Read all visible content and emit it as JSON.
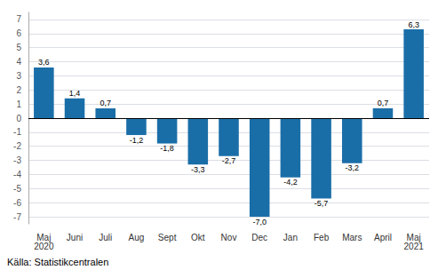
{
  "chart_data": {
    "type": "bar",
    "categories": [
      "Maj\n2020",
      "Juni",
      "Juli",
      "Aug",
      "Sept",
      "Okt",
      "Nov",
      "Dec",
      "Jan",
      "Feb",
      "Mars",
      "April",
      "Maj\n2021"
    ],
    "values": [
      3.6,
      1.4,
      0.7,
      -1.2,
      -1.8,
      -3.3,
      -2.7,
      -7.0,
      -4.2,
      -5.7,
      -3.2,
      0.7,
      6.3
    ],
    "value_labels": [
      "3,6",
      "1,4",
      "0,7",
      "-1,2",
      "-1,8",
      "-3,3",
      "-2,7",
      "-7,0",
      "-4,2",
      "-5,7",
      "-3,2",
      "0,7",
      "6,3"
    ],
    "data_labels": true,
    "color": "#1a6ea8",
    "ylim": [
      -7.5,
      7.5
    ],
    "yticks": [
      -7,
      -6,
      -5,
      -4,
      -3,
      -2,
      -1,
      0,
      1,
      2,
      3,
      4,
      5,
      6,
      7
    ],
    "grid": true,
    "annotations": [
      "Källa: Statistikcentralen"
    ]
  }
}
